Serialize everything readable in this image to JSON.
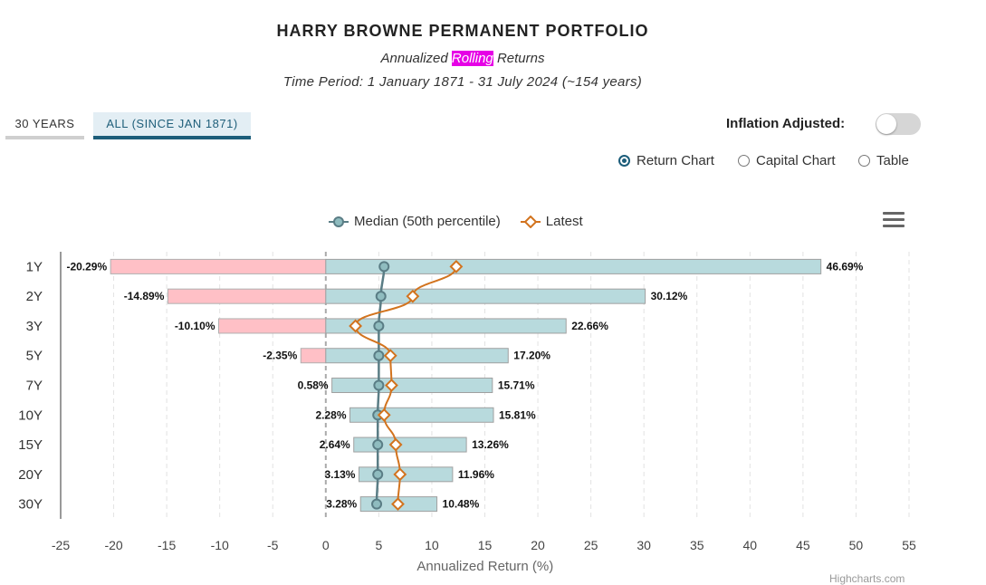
{
  "header": {
    "title": "HARRY BROWNE PERMANENT PORTFOLIO",
    "subtitle_before": "Annualized ",
    "subtitle_highlight": "Rolling",
    "subtitle_after": " Returns",
    "period": "Time Period: 1 January 1871 - 31 July 2024 (~154 years)"
  },
  "tabs": [
    {
      "label": "30 YEARS",
      "active": false
    },
    {
      "label": "ALL (SINCE JAN 1871)",
      "active": true
    }
  ],
  "controls": {
    "inflation_label": "Inflation Adjusted:",
    "inflation_on": false,
    "view_options": [
      {
        "label": "Return Chart",
        "selected": true
      },
      {
        "label": "Capital Chart",
        "selected": false
      },
      {
        "label": "Table",
        "selected": false
      }
    ]
  },
  "credits": "Highcharts.com",
  "chart_data": {
    "type": "bar",
    "orientation": "horizontal",
    "categories": [
      "1Y",
      "2Y",
      "3Y",
      "5Y",
      "7Y",
      "10Y",
      "15Y",
      "20Y",
      "30Y"
    ],
    "range_series": {
      "min": [
        -20.29,
        -14.89,
        -10.1,
        -2.35,
        0.58,
        2.28,
        2.64,
        3.13,
        3.28
      ],
      "max": [
        46.69,
        30.12,
        22.66,
        17.2,
        15.71,
        15.81,
        13.26,
        11.96,
        10.48
      ],
      "min_labels": [
        "-20.29%",
        "-14.89%",
        "-10.10%",
        "-2.35%",
        "0.58%",
        "2.28%",
        "2.64%",
        "3.13%",
        "3.28%"
      ],
      "max_labels": [
        "46.69%",
        "30.12%",
        "22.66%",
        "17.20%",
        "15.71%",
        "15.81%",
        "13.26%",
        "11.96%",
        "10.48%"
      ],
      "positive_color": "#b8dadd",
      "negative_color": "#ffc0c6"
    },
    "series": [
      {
        "name": "Median (50th percentile)",
        "marker": "circle",
        "color": "#5a7d85",
        "values": [
          5.5,
          5.2,
          5.0,
          5.0,
          5.0,
          4.9,
          4.9,
          4.9,
          4.8
        ]
      },
      {
        "name": "Latest",
        "marker": "diamond",
        "color": "#d2731e",
        "values": [
          12.3,
          8.2,
          2.8,
          6.1,
          6.2,
          5.5,
          6.6,
          7.0,
          6.8
        ]
      }
    ],
    "xlabel": "Annualized Return (%)",
    "xlim": [
      -25,
      55
    ],
    "xticks": [
      -25,
      -20,
      -15,
      -10,
      -5,
      0,
      5,
      10,
      15,
      20,
      25,
      30,
      35,
      40,
      45,
      50,
      55
    ],
    "grid": "vertical dashed",
    "legend_position": "top-center"
  }
}
